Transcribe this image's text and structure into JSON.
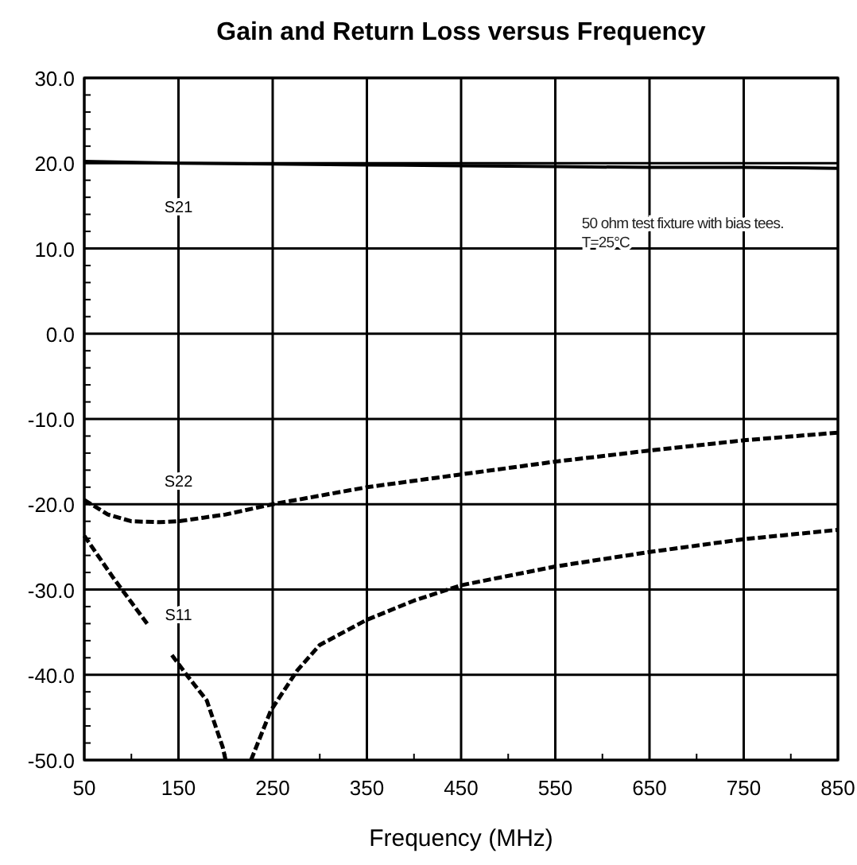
{
  "chart_data": {
    "type": "line",
    "title": "Gain and Return Loss versus Frequency",
    "xlabel": "Frequency (MHz)",
    "xlim": [
      50,
      850
    ],
    "xticks": [
      50,
      150,
      250,
      350,
      450,
      550,
      650,
      750,
      850
    ],
    "ylim": [
      -50,
      30
    ],
    "yticks": [
      {
        "value": -50,
        "label": "-50.0"
      },
      {
        "value": -40,
        "label": "-40.0"
      },
      {
        "value": -30,
        "label": "-30.0"
      },
      {
        "value": -20,
        "label": "-20.0"
      },
      {
        "value": -10,
        "label": "-10.0"
      },
      {
        "value": 0,
        "label": "0.0"
      },
      {
        "value": 10,
        "label": "10.0"
      },
      {
        "value": 20,
        "label": "20.0"
      },
      {
        "value": 30,
        "label": "30.0"
      }
    ],
    "grid": true,
    "marker": "none",
    "annotations": [
      "50 ohm test fixture with bias tees.\nT=25°C"
    ],
    "series": [
      {
        "name": "S21",
        "color": "#000000",
        "line_style": "solid",
        "x": [
          50,
          150,
          250,
          350,
          450,
          550,
          650,
          750,
          850
        ],
        "values": [
          20.2,
          20.0,
          19.9,
          19.8,
          19.7,
          19.6,
          19.5,
          19.5,
          19.4
        ]
      },
      {
        "name": "S22",
        "color": "#000000",
        "line_style": "dashed",
        "x": [
          50,
          75,
          100,
          130,
          150,
          200,
          250,
          350,
          450,
          550,
          650,
          750,
          850
        ],
        "values": [
          -19.5,
          -21.2,
          -22.0,
          -22.1,
          -22.0,
          -21.2,
          -20.0,
          -18.0,
          -16.5,
          -15.0,
          -13.7,
          -12.5,
          -11.6
        ]
      },
      {
        "name": "S11",
        "color": "#000000",
        "line_style": "dashed",
        "x": [
          50,
          80,
          100,
          118,
          130,
          143,
          160,
          180,
          197,
          200,
          213,
          227,
          248,
          276,
          300,
          349,
          400,
          450,
          550,
          650,
          750,
          850
        ],
        "values": [
          -23.7,
          -28.5,
          -31.5,
          -34.2,
          null,
          -37.7,
          -40.2,
          -43.0,
          -48.5,
          -50.0,
          null,
          -50.0,
          -44.2,
          -39.5,
          -36.5,
          -33.6,
          -31.3,
          -29.5,
          -27.3,
          -25.6,
          -24.1,
          -23.0
        ]
      }
    ]
  }
}
